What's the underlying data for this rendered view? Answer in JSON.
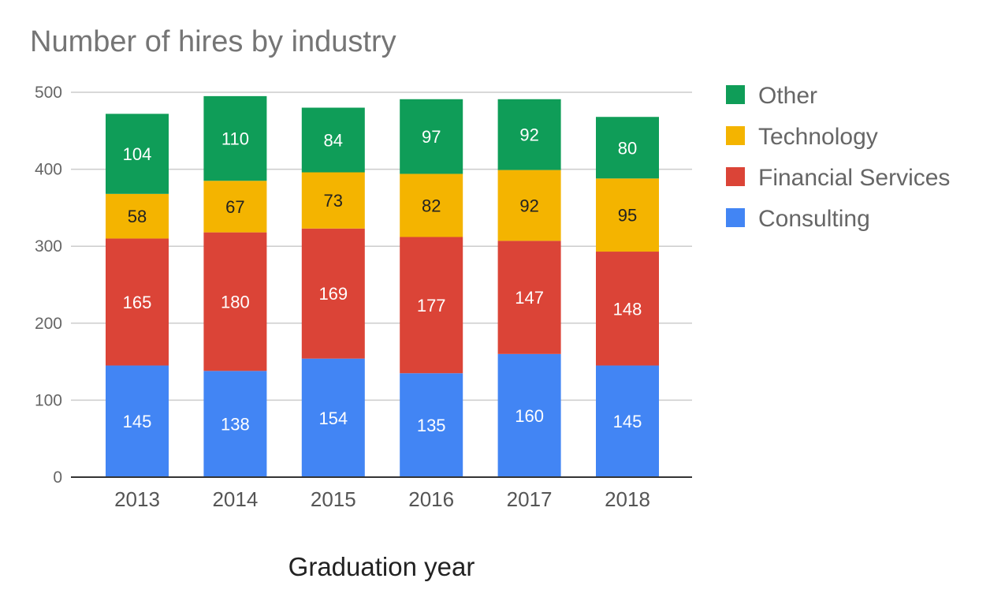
{
  "chart_data": {
    "type": "bar",
    "stacked": true,
    "title": "Number of hires by industry",
    "xlabel": "Graduation year",
    "ylabel": "",
    "ylim": [
      0,
      500
    ],
    "yticks": [
      0,
      100,
      200,
      300,
      400,
      500
    ],
    "grid": true,
    "legend_position": "right",
    "categories": [
      "2013",
      "2014",
      "2015",
      "2016",
      "2017",
      "2018"
    ],
    "series": [
      {
        "name": "Consulting",
        "color": "#4285F4",
        "label_color": "#ffffff",
        "values": [
          145,
          138,
          154,
          135,
          160,
          145
        ]
      },
      {
        "name": "Financial Services",
        "color": "#DB4437",
        "label_color": "#ffffff",
        "values": [
          165,
          180,
          169,
          177,
          147,
          148
        ]
      },
      {
        "name": "Technology",
        "color": "#F4B400",
        "label_color": "#222222",
        "values": [
          58,
          67,
          73,
          82,
          92,
          95
        ]
      },
      {
        "name": "Other",
        "color": "#0F9D58",
        "label_color": "#ffffff",
        "values": [
          104,
          110,
          84,
          97,
          92,
          80
        ]
      }
    ]
  }
}
